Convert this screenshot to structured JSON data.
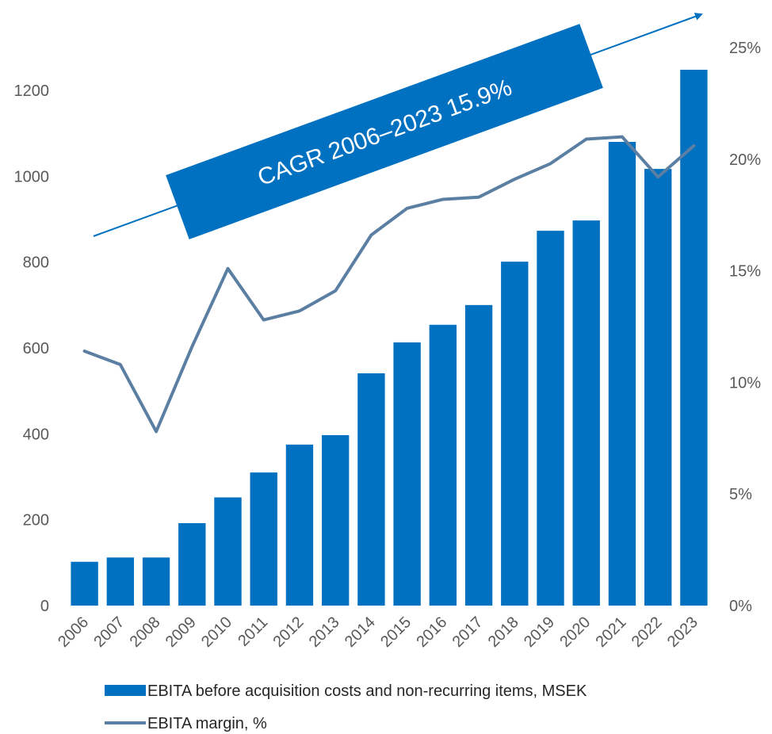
{
  "chart_data": {
    "type": "bar",
    "categories": [
      "2006",
      "2007",
      "2008",
      "2009",
      "2010",
      "2011",
      "2012",
      "2013",
      "2014",
      "2015",
      "2016",
      "2017",
      "2018",
      "2019",
      "2020",
      "2021",
      "2022",
      "2023"
    ],
    "series": [
      {
        "name": "EBITA before acquisition costs and non-recurring items, MSEK",
        "type": "bar",
        "axis": "left",
        "color": "#0070C0",
        "values": [
          102,
          112,
          112,
          192,
          252,
          310,
          375,
          397,
          541,
          613,
          654,
          700,
          801,
          873,
          897,
          1080,
          1017,
          1248
        ]
      },
      {
        "name": "EBITA margin, %",
        "type": "line",
        "axis": "right",
        "color": "#5B7FA3",
        "values": [
          11.4,
          10.8,
          7.8,
          11.6,
          15.1,
          12.8,
          13.2,
          14.1,
          16.6,
          17.8,
          18.2,
          18.3,
          19.1,
          19.8,
          20.9,
          21.0,
          19.2,
          20.6
        ]
      }
    ],
    "y_left": {
      "ylim": [
        0,
        1200
      ],
      "ticks": [
        "0",
        "200",
        "400",
        "600",
        "800",
        "1000",
        "1200"
      ],
      "tick_values": [
        0,
        200,
        400,
        600,
        800,
        1000,
        1200
      ]
    },
    "y_right": {
      "ylim": [
        0,
        25
      ],
      "ticks": [
        "0%",
        "5%",
        "10%",
        "15%",
        "20%",
        "25%"
      ],
      "tick_values": [
        0,
        5,
        10,
        15,
        20,
        25
      ]
    },
    "annotation": {
      "text": "CAGR 2006–2023 15.9%",
      "color": "#0070C0"
    },
    "legend": {
      "position": "bottom",
      "items": [
        {
          "label": "EBITA before acquisition costs and non-recurring items, MSEK",
          "marker": "bar"
        },
        {
          "label": "EBITA margin, %",
          "marker": "line"
        }
      ]
    },
    "grid": false
  }
}
